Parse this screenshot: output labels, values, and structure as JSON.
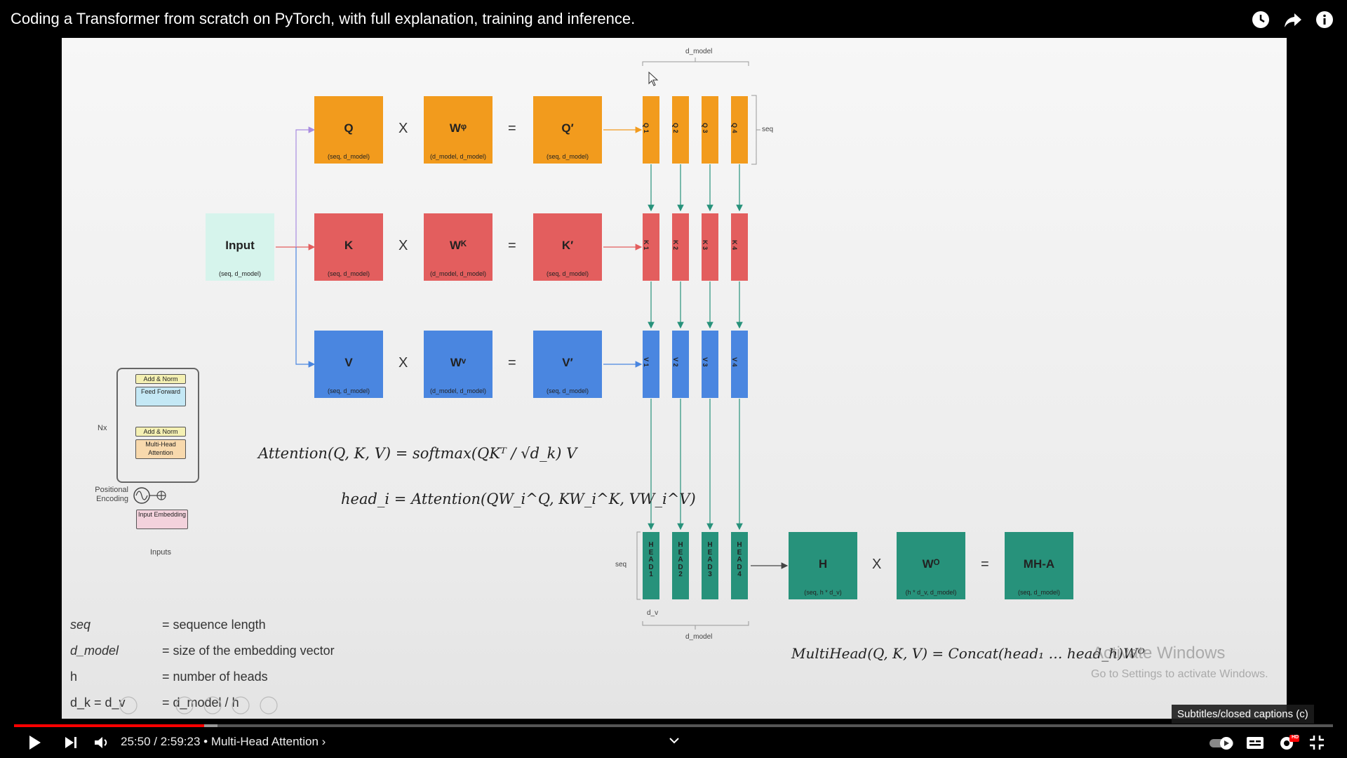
{
  "video": {
    "title": "Coding a Transformer from scratch on PyTorch, with full explanation, training and inference.",
    "time_current": "25:50",
    "time_total": "2:59:23",
    "time_display": "25:50 / 2:59:23",
    "chapter": "• Multi-Head Attention ›",
    "progress_fraction": 0.144,
    "captions_tooltip": "Subtitles/closed captions (c)",
    "hd_badge": "HD"
  },
  "top_icons": [
    "watch-later-icon",
    "share-icon",
    "info-icon"
  ],
  "slide": {
    "input": {
      "label": "Input",
      "dim": "(seq, d_model)"
    },
    "rows": [
      {
        "name": "Q",
        "w": "Wᵠ",
        "out": "Q′",
        "dim_in": "(seq, d_model)",
        "dim_w": "(d_model, d_model)",
        "dim_out": "(seq, d_model)",
        "splits": [
          "Q 1",
          "Q 2",
          "Q 3",
          "Q 4"
        ],
        "color": "#f29b1d"
      },
      {
        "name": "K",
        "w": "Wᴷ",
        "out": "K′",
        "dim_in": "(seq, d_model)",
        "dim_w": "(d_model, d_model)",
        "dim_out": "(seq, d_model)",
        "splits": [
          "K 1",
          "K 2",
          "K 3",
          "K 4"
        ],
        "color": "#e35e5e"
      },
      {
        "name": "V",
        "w": "Wᵛ",
        "out": "V′",
        "dim_in": "(seq, d_model)",
        "dim_w": "(d_model, d_model)",
        "dim_out": "(seq, d_model)",
        "splits": [
          "V 1",
          "V 2",
          "V 3",
          "V 4"
        ],
        "color": "#4a86e0"
      }
    ],
    "op_times": "X",
    "op_equals": "=",
    "heads": [
      "H\nE\nA\nD\n1",
      "H\nE\nA\nD\n2",
      "H\nE\nA\nD\n3",
      "H\nE\nA\nD\n4"
    ],
    "h_box": {
      "label": "H",
      "dim": "(seq, h * d_v)"
    },
    "wo_box": {
      "label": "Wᴼ",
      "dim": "(h * d_v, d_model)"
    },
    "mha_box": {
      "label": "MH-A",
      "dim": "(seq, d_model)"
    },
    "labels": {
      "d_model_top": "d_model",
      "seq_right": "seq",
      "seq_left": "seq",
      "d_v": "d_v",
      "d_model_bottom": "d_model"
    },
    "formula_attention": "Attention(Q, K, V) = softmax(QKᵀ / √d_k) V",
    "formula_head": "head_i = Attention(QW_i^Q, KW_i^K, VW_i^V)",
    "formula_multihead": "MultiHead(Q, K, V) = Concat(head₁ … head_h)Wᴼ",
    "legend": [
      {
        "key": "seq",
        "value": "= sequence length"
      },
      {
        "key": "d_model",
        "value": "= size of the embedding vector"
      },
      {
        "key": "h",
        "value": "= number of heads"
      },
      {
        "key": "d_k = d_v",
        "value": "= d_model / h"
      }
    ],
    "mini_diagram": {
      "add_norm": "Add & Norm",
      "feed_forward": "Feed Forward",
      "mha": "Multi-Head Attention",
      "nx": "Nx",
      "positional": "Positional Encoding",
      "input_embedding": "Input Embedding",
      "inputs": "Inputs"
    },
    "watermark_title": "Activate Windows",
    "watermark_sub": "Go to Settings to activate Windows."
  }
}
